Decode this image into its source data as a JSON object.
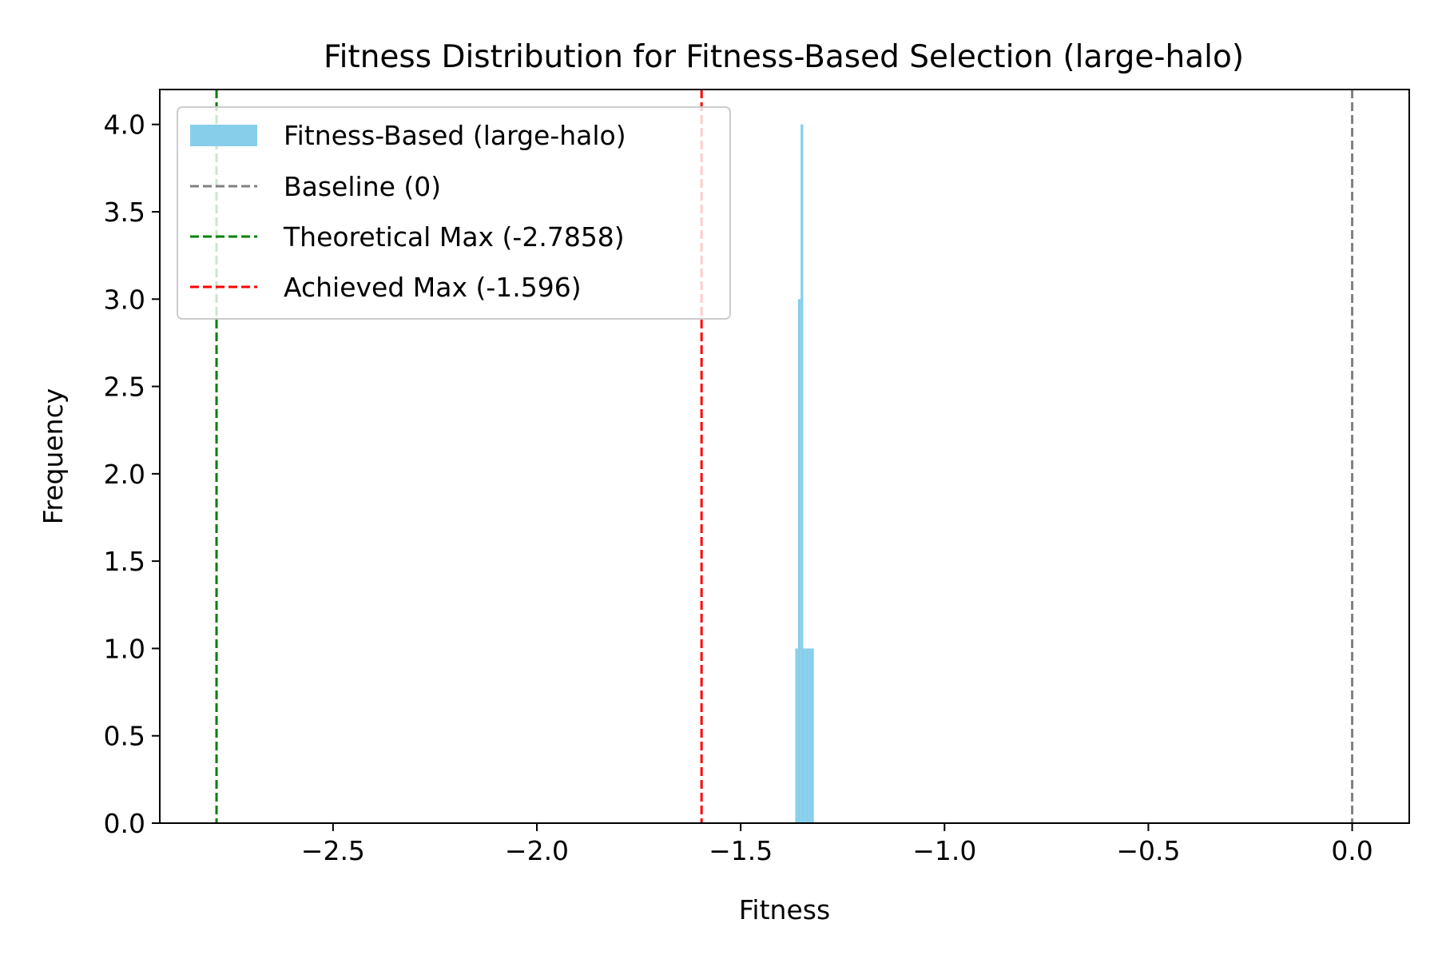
{
  "chart_data": {
    "type": "bar",
    "title": "Fitness Distribution for Fitness-Based Selection (large-halo)",
    "xlabel": "Fitness",
    "ylabel": "Frequency",
    "xlim": [
      -2.925,
      0.14
    ],
    "ylim": [
      0,
      4.2
    ],
    "grid": false,
    "legend_position": "top-left",
    "x_ticks": [
      {
        "value": -2.5,
        "label": "−2.5"
      },
      {
        "value": -2.0,
        "label": "−2.0"
      },
      {
        "value": -1.5,
        "label": "−1.5"
      },
      {
        "value": -1.0,
        "label": "−1.0"
      },
      {
        "value": -0.5,
        "label": "−0.5"
      },
      {
        "value": 0.0,
        "label": "0.0"
      }
    ],
    "y_ticks": [
      {
        "value": 0.0,
        "label": "0.0"
      },
      {
        "value": 0.5,
        "label": "0.5"
      },
      {
        "value": 1.0,
        "label": "1.0"
      },
      {
        "value": 1.5,
        "label": "1.5"
      },
      {
        "value": 2.0,
        "label": "2.0"
      },
      {
        "value": 2.5,
        "label": "2.5"
      },
      {
        "value": 3.0,
        "label": "3.0"
      },
      {
        "value": 3.5,
        "label": "3.5"
      },
      {
        "value": 4.0,
        "label": "4.0"
      }
    ],
    "histogram": {
      "name": "Fitness-Based (large-halo)",
      "color": "#87CEEB",
      "bins": [
        {
          "x0": -1.366,
          "x1": -1.3595,
          "count": 1
        },
        {
          "x0": -1.3595,
          "x1": -1.353,
          "count": 3
        },
        {
          "x0": -1.353,
          "x1": -1.3465,
          "count": 4
        },
        {
          "x0": -1.3465,
          "x1": -1.34,
          "count": 1
        },
        {
          "x0": -1.34,
          "x1": -1.3335,
          "count": 1
        },
        {
          "x0": -1.3335,
          "x1": -1.327,
          "count": 1
        },
        {
          "x0": -1.327,
          "x1": -1.3205,
          "count": 1
        }
      ]
    },
    "reference_lines": [
      {
        "name": "Baseline (0)",
        "x": 0,
        "color": "#808080"
      },
      {
        "name": "Theoretical Max (-2.7858)",
        "x": -2.7858,
        "color": "#008000"
      },
      {
        "name": "Achieved Max (-1.596)",
        "x": -1.596,
        "color": "#ff0000"
      }
    ]
  }
}
